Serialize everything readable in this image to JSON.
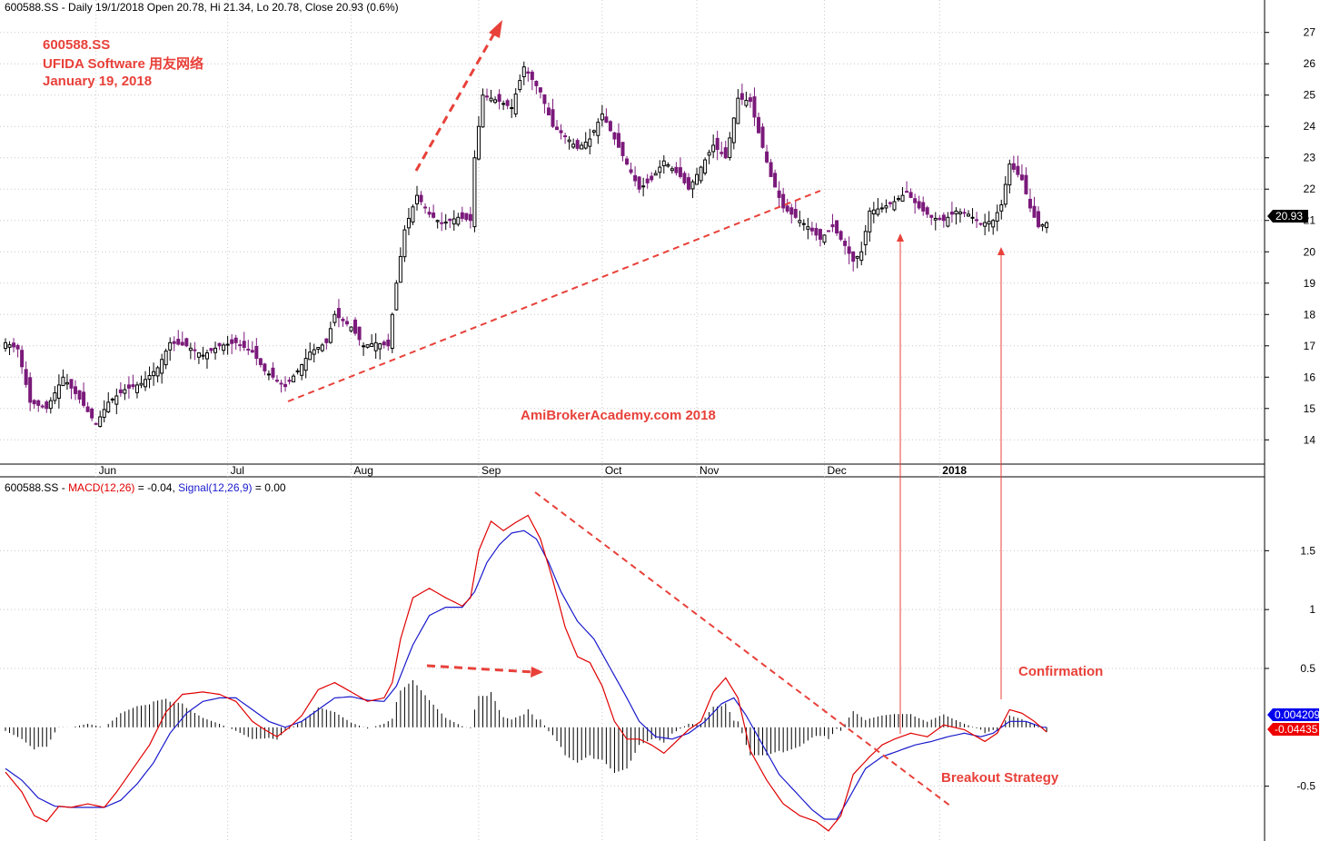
{
  "colors": {
    "up": "#000000",
    "down": "#7b1a7b",
    "annotation": "#e8413a",
    "macd": "#e00000",
    "signal": "#1a1acc",
    "hist": "#000000",
    "grid": "#c8c8c8",
    "last_price_bg": "#000000",
    "signal_badge": "#0000ee",
    "macd_badge": "#ee0000"
  },
  "header": {
    "price": "600588.SS - Daily 19/1/2018 Open 20.78, Hi 21.34, Lo 20.78, Close 20.93 (0.6%)",
    "macd_prefix": "600588.SS - ",
    "macd_name": "MACD(12,26)",
    "macd_val": " = -0.04, ",
    "signal_name": "Signal(12,26,9)",
    "signal_val": " = 0.00"
  },
  "title_lines": [
    "600588.SS",
    "UFIDA Software 用友网络",
    "January 19, 2018"
  ],
  "watermark": "AmiBrokerAcademy.com  2018",
  "annotations": {
    "confirmation": "Confirmation",
    "breakout": "Breakout Strategy"
  },
  "badges": {
    "last_price": "20.93",
    "signal": "0.004209",
    "macd": "-0.04435"
  },
  "chart_data": [
    {
      "type": "candlestick",
      "ylim": [
        13.4,
        27.6
      ],
      "y_ticks": [
        14,
        15,
        16,
        17,
        18,
        19,
        20,
        21,
        22,
        23,
        24,
        25,
        26,
        27
      ],
      "month_labels": [
        {
          "label": "Jun",
          "day": 22
        },
        {
          "label": "Jul",
          "day": 54
        },
        {
          "label": "Aug",
          "day": 84
        },
        {
          "label": "Sep",
          "day": 115
        },
        {
          "label": "Oct",
          "day": 145
        },
        {
          "label": "Nov",
          "day": 168
        },
        {
          "label": "Dec",
          "day": 199
        },
        {
          "label": "2018",
          "day": 227
        }
      ],
      "anchors": [
        [
          0,
          17.1
        ],
        [
          3,
          16.9
        ],
        [
          6,
          15.2
        ],
        [
          10,
          15.0
        ],
        [
          14,
          16.0
        ],
        [
          18,
          15.3
        ],
        [
          22,
          14.5
        ],
        [
          25,
          15.2
        ],
        [
          29,
          15.6
        ],
        [
          33,
          15.8
        ],
        [
          37,
          16.3
        ],
        [
          40,
          17.1
        ],
        [
          44,
          17.0
        ],
        [
          48,
          16.7
        ],
        [
          52,
          17.0
        ],
        [
          56,
          17.1
        ],
        [
          60,
          16.8
        ],
        [
          63,
          16.2
        ],
        [
          66,
          15.9
        ],
        [
          68,
          15.7
        ],
        [
          71,
          16.2
        ],
        [
          74,
          16.8
        ],
        [
          78,
          17.1
        ],
        [
          80,
          18.0
        ],
        [
          84,
          17.6
        ],
        [
          87,
          17.0
        ],
        [
          90,
          17.1
        ],
        [
          93,
          17.0
        ],
        [
          95,
          19.0
        ],
        [
          97,
          20.7
        ],
        [
          100,
          21.8
        ],
        [
          103,
          21.2
        ],
        [
          106,
          20.9
        ],
        [
          110,
          21.1
        ],
        [
          113,
          21.0
        ],
        [
          114,
          23.0
        ],
        [
          116,
          25.0
        ],
        [
          120,
          24.8
        ],
        [
          123,
          24.6
        ],
        [
          126,
          25.9
        ],
        [
          130,
          25.1
        ],
        [
          133,
          24.0
        ],
        [
          136,
          23.7
        ],
        [
          139,
          23.3
        ],
        [
          142,
          23.6
        ],
        [
          145,
          24.4
        ],
        [
          148,
          23.6
        ],
        [
          151,
          22.8
        ],
        [
          154,
          22.0
        ],
        [
          157,
          22.3
        ],
        [
          160,
          22.9
        ],
        [
          164,
          22.4
        ],
        [
          166,
          22.0
        ],
        [
          169,
          22.7
        ],
        [
          172,
          23.4
        ],
        [
          175,
          23.0
        ],
        [
          178,
          24.9
        ],
        [
          181,
          24.8
        ],
        [
          183,
          23.8
        ],
        [
          186,
          22.4
        ],
        [
          189,
          21.4
        ],
        [
          192,
          21.1
        ],
        [
          195,
          20.8
        ],
        [
          198,
          20.4
        ],
        [
          201,
          20.8
        ],
        [
          204,
          20.2
        ],
        [
          206,
          19.7
        ],
        [
          208,
          20.0
        ],
        [
          210,
          21.3
        ],
        [
          213,
          21.4
        ],
        [
          216,
          21.6
        ],
        [
          219,
          21.9
        ],
        [
          222,
          21.4
        ],
        [
          225,
          21.1
        ],
        [
          228,
          21.0
        ],
        [
          231,
          21.3
        ],
        [
          234,
          21.2
        ],
        [
          237,
          20.9
        ],
        [
          240,
          21.0
        ],
        [
          242,
          21.5
        ],
        [
          244,
          22.8
        ],
        [
          247,
          22.3
        ],
        [
          249,
          21.4
        ],
        [
          251,
          20.8
        ],
        [
          253,
          20.93
        ]
      ],
      "annotation_text": [
        "Confirmation",
        "Breakout Strategy"
      ]
    },
    {
      "type": "line+histogram",
      "ylim": [
        -0.95,
        1.95
      ],
      "y_ticks": [
        -0.5,
        0.5,
        1.0,
        1.5
      ],
      "series": [
        {
          "name": "MACD(12,26)",
          "anchors": [
            [
              0,
              -0.38
            ],
            [
              4,
              -0.55
            ],
            [
              7,
              -0.75
            ],
            [
              10,
              -0.8
            ],
            [
              13,
              -0.67
            ],
            [
              16,
              -0.68
            ],
            [
              20,
              -0.65
            ],
            [
              24,
              -0.68
            ],
            [
              27,
              -0.55
            ],
            [
              31,
              -0.35
            ],
            [
              35,
              -0.15
            ],
            [
              39,
              0.13
            ],
            [
              43,
              0.28
            ],
            [
              48,
              0.3
            ],
            [
              52,
              0.28
            ],
            [
              56,
              0.22
            ],
            [
              60,
              0.05
            ],
            [
              63,
              -0.02
            ],
            [
              66,
              -0.08
            ],
            [
              69,
              0.0
            ],
            [
              72,
              0.1
            ],
            [
              76,
              0.32
            ],
            [
              80,
              0.38
            ],
            [
              84,
              0.3
            ],
            [
              88,
              0.22
            ],
            [
              92,
              0.25
            ],
            [
              94,
              0.38
            ],
            [
              96,
              0.75
            ],
            [
              99,
              1.1
            ],
            [
              103,
              1.18
            ],
            [
              107,
              1.1
            ],
            [
              111,
              1.03
            ],
            [
              113,
              1.1
            ],
            [
              115,
              1.5
            ],
            [
              118,
              1.75
            ],
            [
              121,
              1.67
            ],
            [
              124,
              1.74
            ],
            [
              127,
              1.8
            ],
            [
              130,
              1.6
            ],
            [
              133,
              1.25
            ],
            [
              136,
              0.85
            ],
            [
              139,
              0.6
            ],
            [
              142,
              0.55
            ],
            [
              145,
              0.35
            ],
            [
              148,
              0.05
            ],
            [
              151,
              -0.1
            ],
            [
              154,
              -0.1
            ],
            [
              157,
              -0.15
            ],
            [
              160,
              -0.22
            ],
            [
              163,
              -0.12
            ],
            [
              166,
              -0.02
            ],
            [
              169,
              0.05
            ],
            [
              172,
              0.3
            ],
            [
              175,
              0.42
            ],
            [
              178,
              0.25
            ],
            [
              181,
              -0.2
            ],
            [
              185,
              -0.45
            ],
            [
              189,
              -0.65
            ],
            [
              193,
              -0.75
            ],
            [
              197,
              -0.8
            ],
            [
              200,
              -0.88
            ],
            [
              203,
              -0.75
            ],
            [
              206,
              -0.4
            ],
            [
              210,
              -0.25
            ],
            [
              213,
              -0.15
            ],
            [
              216,
              -0.1
            ],
            [
              220,
              -0.05
            ],
            [
              224,
              -0.08
            ],
            [
              228,
              0.02
            ],
            [
              233,
              -0.02
            ],
            [
              238,
              -0.12
            ],
            [
              241,
              -0.05
            ],
            [
              244,
              0.15
            ],
            [
              247,
              0.12
            ],
            [
              250,
              0.05
            ],
            [
              253,
              -0.04
            ]
          ]
        },
        {
          "name": "Signal(12,26,9)",
          "anchors": [
            [
              0,
              -0.35
            ],
            [
              4,
              -0.45
            ],
            [
              8,
              -0.6
            ],
            [
              12,
              -0.67
            ],
            [
              16,
              -0.68
            ],
            [
              20,
              -0.68
            ],
            [
              24,
              -0.68
            ],
            [
              28,
              -0.62
            ],
            [
              32,
              -0.48
            ],
            [
              36,
              -0.3
            ],
            [
              40,
              -0.05
            ],
            [
              44,
              0.12
            ],
            [
              48,
              0.22
            ],
            [
              52,
              0.25
            ],
            [
              56,
              0.25
            ],
            [
              60,
              0.15
            ],
            [
              64,
              0.05
            ],
            [
              68,
              0.0
            ],
            [
              72,
              0.05
            ],
            [
              76,
              0.15
            ],
            [
              80,
              0.25
            ],
            [
              84,
              0.26
            ],
            [
              88,
              0.23
            ],
            [
              92,
              0.22
            ],
            [
              95,
              0.35
            ],
            [
              99,
              0.7
            ],
            [
              103,
              0.95
            ],
            [
              107,
              1.02
            ],
            [
              111,
              1.02
            ],
            [
              114,
              1.15
            ],
            [
              117,
              1.4
            ],
            [
              120,
              1.55
            ],
            [
              123,
              1.65
            ],
            [
              126,
              1.67
            ],
            [
              129,
              1.6
            ],
            [
              132,
              1.4
            ],
            [
              135,
              1.15
            ],
            [
              139,
              0.9
            ],
            [
              143,
              0.75
            ],
            [
              147,
              0.5
            ],
            [
              151,
              0.25
            ],
            [
              154,
              0.05
            ],
            [
              158,
              -0.08
            ],
            [
              162,
              -0.1
            ],
            [
              166,
              -0.05
            ],
            [
              170,
              0.05
            ],
            [
              174,
              0.2
            ],
            [
              177,
              0.25
            ],
            [
              180,
              0.1
            ],
            [
              184,
              -0.15
            ],
            [
              188,
              -0.4
            ],
            [
              192,
              -0.55
            ],
            [
              196,
              -0.7
            ],
            [
              199,
              -0.78
            ],
            [
              202,
              -0.78
            ],
            [
              205,
              -0.6
            ],
            [
              209,
              -0.35
            ],
            [
              213,
              -0.25
            ],
            [
              217,
              -0.2
            ],
            [
              221,
              -0.15
            ],
            [
              225,
              -0.12
            ],
            [
              229,
              -0.08
            ],
            [
              233,
              -0.05
            ],
            [
              237,
              -0.08
            ],
            [
              240,
              -0.05
            ],
            [
              244,
              0.05
            ],
            [
              248,
              0.05
            ],
            [
              252,
              0.0
            ]
          ]
        }
      ]
    }
  ]
}
